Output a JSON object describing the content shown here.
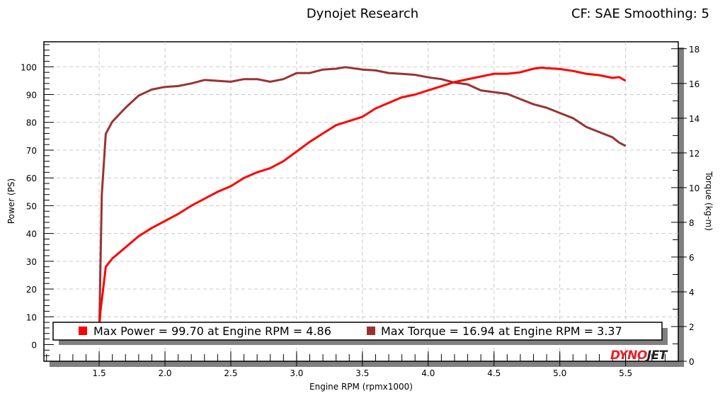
{
  "header": {
    "title": "Dynojet Research",
    "correction": "CF: SAE Smoothing: 5"
  },
  "logo": {
    "text": "DYNOJET"
  },
  "chart_data": {
    "type": "line",
    "title": "Dynojet Research",
    "xlabel": "Engine RPM (rpmx1000)",
    "ylabel": "Power (PS)",
    "y2label": "Torque (kg-m)",
    "xlim": [
      1.08,
      5.9
    ],
    "ylim": [
      -6,
      109
    ],
    "y2lim": [
      0,
      18.4
    ],
    "xticks": [
      1.5,
      2.0,
      2.5,
      3.0,
      3.5,
      4.0,
      4.5,
      5.0,
      5.5
    ],
    "xtick_labels": [
      "1.5",
      "2.0",
      "2.5",
      "3.0",
      "3.5",
      "4.0",
      "4.5",
      "5.0",
      "5.5"
    ],
    "yticks": [
      0,
      10,
      20,
      30,
      40,
      50,
      60,
      70,
      80,
      90,
      100
    ],
    "y2ticks": [
      0,
      2,
      4,
      6,
      8,
      10,
      12,
      14,
      16,
      18
    ],
    "grid": true,
    "legend_position": "bottom",
    "series": [
      {
        "name": "Power",
        "axis": "left",
        "color": "#ff0000",
        "x": [
          1.5,
          1.51,
          1.53,
          1.55,
          1.6,
          1.7,
          1.8,
          1.9,
          2.0,
          2.1,
          2.2,
          2.3,
          2.4,
          2.5,
          2.6,
          2.7,
          2.8,
          2.9,
          3.0,
          3.1,
          3.2,
          3.3,
          3.4,
          3.5,
          3.6,
          3.7,
          3.8,
          3.9,
          4.0,
          4.1,
          4.2,
          4.3,
          4.4,
          4.5,
          4.6,
          4.7,
          4.8,
          4.86,
          4.9,
          5.0,
          5.1,
          5.2,
          5.3,
          5.4,
          5.45,
          5.5
        ],
        "y": [
          6,
          12,
          20,
          28,
          31,
          35,
          39,
          42,
          44.5,
          47,
          50,
          52.5,
          55,
          57,
          60,
          62,
          63.5,
          66,
          69.5,
          73,
          76,
          79,
          80.5,
          82,
          85,
          87,
          89,
          90,
          91.5,
          93,
          94.5,
          95.5,
          96.5,
          97.5,
          97.5,
          98,
          99.3,
          99.7,
          99.5,
          99.2,
          98.5,
          97.5,
          97,
          96,
          96.3,
          95
        ]
      },
      {
        "name": "Torque",
        "axis": "right",
        "color": "#993333",
        "x": [
          1.5,
          1.51,
          1.52,
          1.55,
          1.6,
          1.7,
          1.8,
          1.9,
          2.0,
          2.1,
          2.2,
          2.3,
          2.4,
          2.5,
          2.6,
          2.7,
          2.8,
          2.9,
          3.0,
          3.1,
          3.2,
          3.3,
          3.37,
          3.5,
          3.6,
          3.7,
          3.8,
          3.9,
          4.0,
          4.1,
          4.2,
          4.3,
          4.4,
          4.5,
          4.6,
          4.7,
          4.8,
          4.9,
          5.0,
          5.1,
          5.2,
          5.3,
          5.4,
          5.45,
          5.5
        ],
        "y": [
          1.5,
          5.5,
          9.6,
          13.1,
          13.8,
          14.6,
          15.3,
          15.65,
          15.8,
          15.85,
          16.0,
          16.2,
          16.15,
          16.1,
          16.25,
          16.25,
          16.1,
          16.25,
          16.6,
          16.6,
          16.8,
          16.85,
          16.94,
          16.8,
          16.75,
          16.6,
          16.55,
          16.5,
          16.35,
          16.25,
          16.05,
          15.95,
          15.6,
          15.5,
          15.4,
          15.1,
          14.8,
          14.6,
          14.3,
          14.0,
          13.5,
          13.2,
          12.9,
          12.6,
          12.4
        ]
      }
    ],
    "legend": [
      {
        "label": "Max Power = 99.70 at Engine RPM = 4.86",
        "color": "#ff0000"
      },
      {
        "label": "Max Torque = 16.94 at Engine RPM = 3.37",
        "color": "#993333"
      }
    ]
  }
}
